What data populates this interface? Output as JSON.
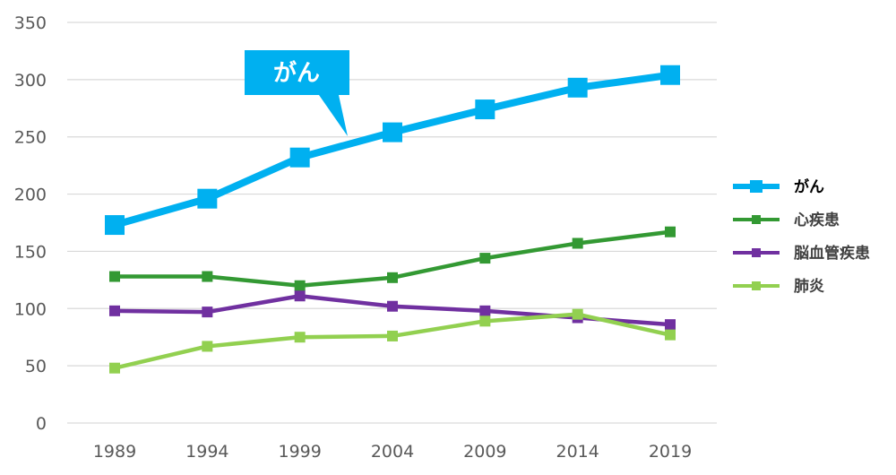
{
  "chart_data": {
    "type": "line",
    "x": [
      "1989",
      "1994",
      "1999",
      "2004",
      "2009",
      "2014",
      "2019"
    ],
    "ylim": [
      0,
      350
    ],
    "yticks": [
      0,
      50,
      100,
      150,
      200,
      250,
      300,
      350
    ],
    "grid": true,
    "legend_position": "right",
    "series": [
      {
        "name": "がん",
        "color": "#00B0F0",
        "emphasis": true,
        "values": [
          173,
          196,
          232,
          254,
          274,
          293,
          304
        ]
      },
      {
        "name": "心疾患",
        "color": "#339933",
        "emphasis": false,
        "values": [
          128,
          128,
          120,
          127,
          144,
          157,
          167
        ]
      },
      {
        "name": "脳血管疾患",
        "color": "#7030A0",
        "emphasis": false,
        "values": [
          98,
          97,
          111,
          102,
          98,
          92,
          86
        ]
      },
      {
        "name": "肺炎",
        "color": "#92D050",
        "emphasis": false,
        "values": [
          48,
          67,
          75,
          76,
          89,
          95,
          77
        ]
      }
    ],
    "annotations": [
      {
        "text": "がん",
        "series": "がん",
        "color": "#00B0F0"
      }
    ]
  }
}
